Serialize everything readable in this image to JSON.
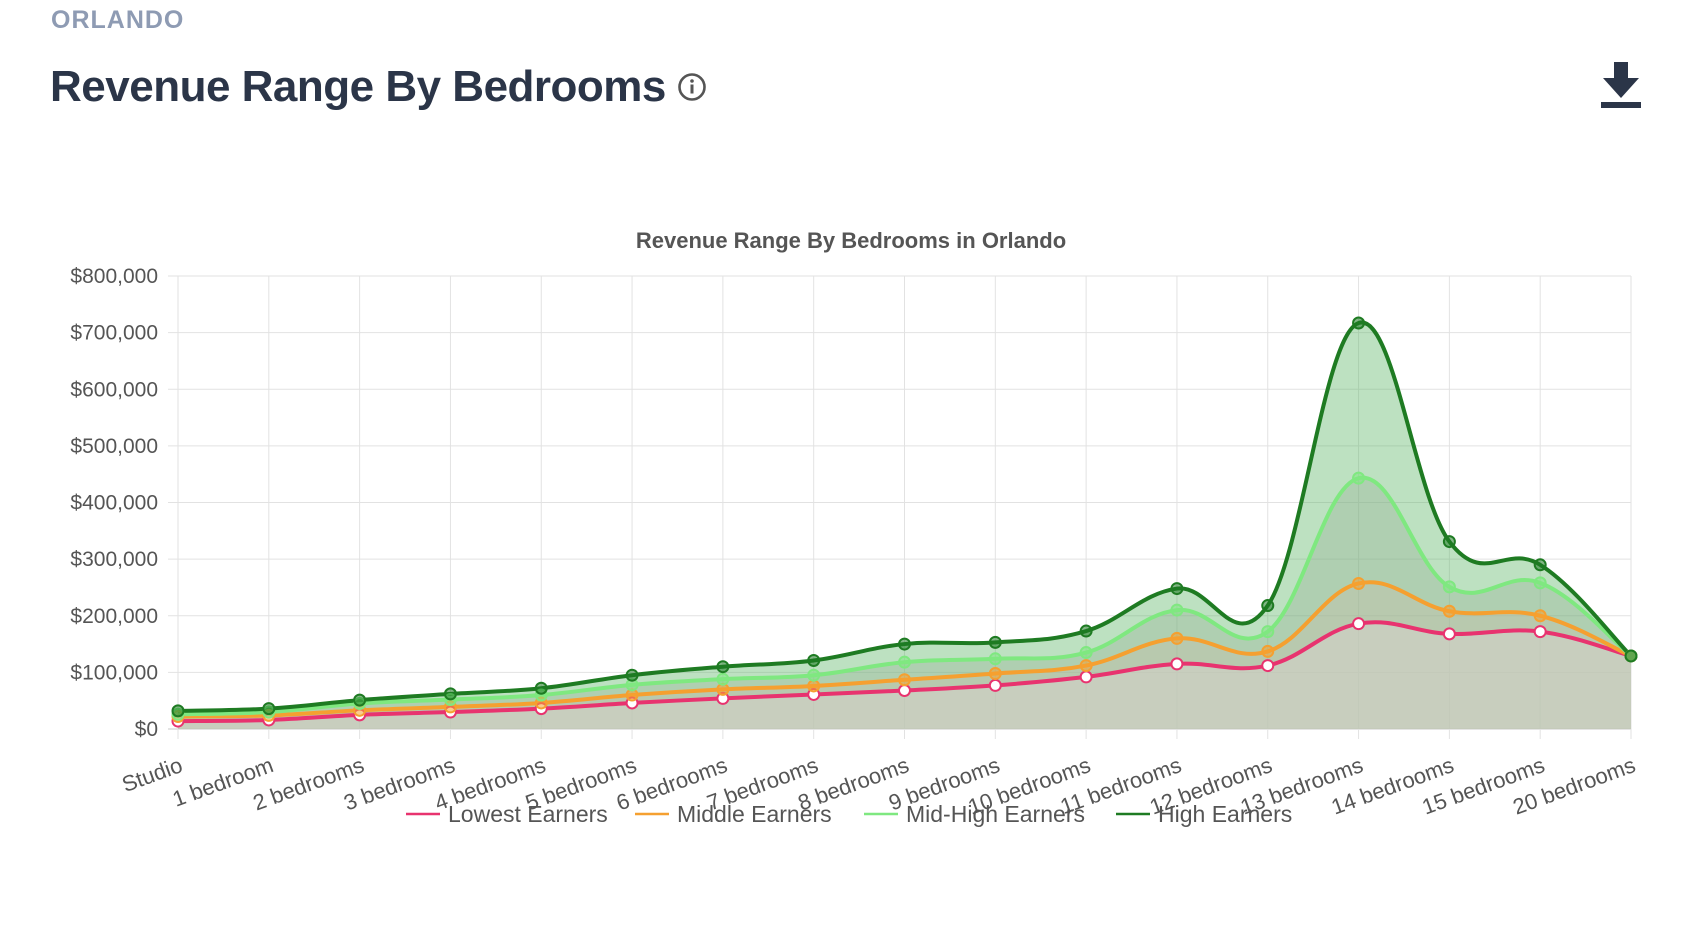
{
  "header": {
    "city": "ORLANDO",
    "title": "Revenue Range By Bedrooms"
  },
  "icons": {
    "info": "info-icon",
    "download": "download-icon"
  },
  "colors": {
    "text_dark": "#2b3548",
    "eyebrow": "#8e9bb3",
    "grid": "#e0e0e0"
  },
  "chart_data": {
    "type": "line",
    "title": "Revenue Range By Bedrooms in Orlando",
    "xlabel": "",
    "ylabel": "",
    "ylim": [
      0,
      800000
    ],
    "y_ticks": [
      "$0",
      "$100,000",
      "$200,000",
      "$300,000",
      "$400,000",
      "$500,000",
      "$600,000",
      "$700,000",
      "$800,000"
    ],
    "grid": true,
    "legend_position": "bottom",
    "categories": [
      "Studio",
      "1 bedroom",
      "2 bedrooms",
      "3 bedrooms",
      "4 bedrooms",
      "5 bedrooms",
      "6 bedrooms",
      "7 bedrooms",
      "8 bedrooms",
      "9 bedrooms",
      "10 bedrooms",
      "11 bedrooms",
      "12 bedrooms",
      "13 bedrooms",
      "14 bedrooms",
      "15 bedrooms",
      "20 bedrooms"
    ],
    "series": [
      {
        "name": "Lowest Earners",
        "color": "#e8336f",
        "fill": "rgba(225,215,215,0.40)",
        "values": [
          14000,
          16000,
          25000,
          30000,
          36000,
          46000,
          54000,
          61000,
          68000,
          77000,
          92000,
          115000,
          112000,
          186000,
          168000,
          172000,
          129000
        ]
      },
      {
        "name": "Middle Earners",
        "color": "#f5a030",
        "fill": "rgba(200,190,170,0.35)",
        "values": [
          22000,
          24000,
          33000,
          39000,
          46000,
          60000,
          70000,
          76000,
          87000,
          98000,
          112000,
          160000,
          137000,
          257000,
          208000,
          200000,
          129000
        ]
      },
      {
        "name": "Mid-High Earners",
        "color": "#7fe880",
        "fill": "rgba(150,175,150,0.35)",
        "values": [
          26000,
          30000,
          45000,
          52000,
          60000,
          78000,
          88000,
          95000,
          118000,
          124000,
          135000,
          210000,
          172000,
          443000,
          251000,
          258000,
          129000
        ]
      },
      {
        "name": "High Earners",
        "color": "#1e7b22",
        "fill": "rgba(90,180,100,0.40)",
        "values": [
          32000,
          36000,
          51000,
          62000,
          72000,
          95000,
          110000,
          121000,
          150000,
          153000,
          173000,
          248000,
          218000,
          717000,
          331000,
          290000,
          129000
        ]
      }
    ]
  }
}
